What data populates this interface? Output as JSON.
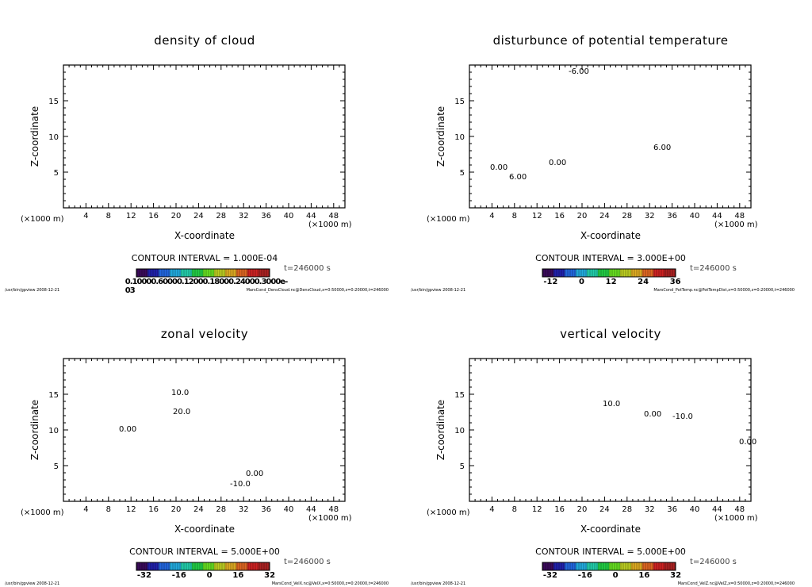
{
  "chart_data": [
    {
      "type": "heatmap",
      "title": "density of cloud",
      "xlabel": "X-coordinate",
      "ylabel": "Z-coordinate",
      "xunit": "(×1000 m)",
      "yunit": "(×1000 m)",
      "xlim": [
        0,
        50
      ],
      "ylim": [
        0,
        20
      ],
      "xticks": [
        4,
        8,
        12,
        16,
        20,
        24,
        28,
        32,
        36,
        40,
        44,
        48
      ],
      "yticks": [
        5,
        10,
        15
      ],
      "contour_interval": "CONTOUR INTERVAL = 1.000E-04",
      "colorbar_labels": [
        "0.10000e-03",
        "0.60000e-03",
        "0.12000e-03",
        "0.18000e-03",
        "0.24000e-03",
        "0.30000e-03"
      ],
      "colorbar_text": "0.10000.60000.12000.18000.24000.3000e-03",
      "time": "t=246000 s",
      "footer_left": "/usr/bin/gpview  2008-12-21",
      "footer_right": "MarsCond_DensCloud.nc@DensCloud,x=0:50000,z=0:20000,t=246000",
      "contour_labels": []
    },
    {
      "type": "heatmap",
      "title": "disturbunce of potential temperature",
      "xlabel": "X-coordinate",
      "ylabel": "Z-coordinate",
      "xunit": "(×1000 m)",
      "yunit": "(×1000 m)",
      "xlim": [
        0,
        50
      ],
      "ylim": [
        0,
        20
      ],
      "xticks": [
        4,
        8,
        12,
        16,
        20,
        24,
        28,
        32,
        36,
        40,
        44,
        48
      ],
      "yticks": [
        5,
        10,
        15
      ],
      "contour_interval": "CONTOUR INTERVAL = 3.000E+00",
      "colorbar_labels": [
        "-12",
        "0",
        "12",
        "24",
        "36"
      ],
      "time": "t=246000 s",
      "footer_left": "/usr/bin/gpview  2008-12-21",
      "footer_right": "MarsCond_PotTemp.nc@PotTempDist,x=0:50000,z=0:20000,t=246000",
      "contour_labels": [
        "-6.00",
        "0.00",
        "0.00",
        "6.00",
        "6.00"
      ]
    },
    {
      "type": "heatmap",
      "title": "zonal velocity",
      "xlabel": "X-coordinate",
      "ylabel": "Z-coordinate",
      "xunit": "(×1000 m)",
      "yunit": "(×1000 m)",
      "xlim": [
        0,
        50
      ],
      "ylim": [
        0,
        20
      ],
      "xticks": [
        4,
        8,
        12,
        16,
        20,
        24,
        28,
        32,
        36,
        40,
        44,
        48
      ],
      "yticks": [
        5,
        10,
        15
      ],
      "contour_interval": "CONTOUR INTERVAL = 5.000E+00",
      "colorbar_labels": [
        "-32",
        "-16",
        "0",
        "16",
        "32"
      ],
      "time": "t=246000 s",
      "footer_left": "/usr/bin/gpview  2008-12-21",
      "footer_right": "MarsCond_VelX.nc@VelX,x=0:50000,z=0:20000,t=246000",
      "contour_labels": [
        "10.0",
        "20.0",
        "0.00",
        "0.00",
        "-10.0"
      ]
    },
    {
      "type": "heatmap",
      "title": "vertical velocity",
      "xlabel": "X-coordinate",
      "ylabel": "Z-coordinate",
      "xunit": "(×1000 m)",
      "yunit": "(×1000 m)",
      "xlim": [
        0,
        50
      ],
      "ylim": [
        0,
        20
      ],
      "xticks": [
        4,
        8,
        12,
        16,
        20,
        24,
        28,
        32,
        36,
        40,
        44,
        48
      ],
      "yticks": [
        5,
        10,
        15
      ],
      "contour_interval": "CONTOUR INTERVAL = 5.000E+00",
      "colorbar_labels": [
        "-32",
        "-16",
        "0",
        "16",
        "32"
      ],
      "time": "t=246000 s",
      "footer_left": "/usr/bin/gpview  2008-12-21",
      "footer_right": "MarsCond_VelZ.nc@VelZ,x=0:50000,z=0:20000,t=246000",
      "contour_labels": [
        "10.0",
        "0.00",
        "-10.0",
        "0.00"
      ]
    }
  ]
}
